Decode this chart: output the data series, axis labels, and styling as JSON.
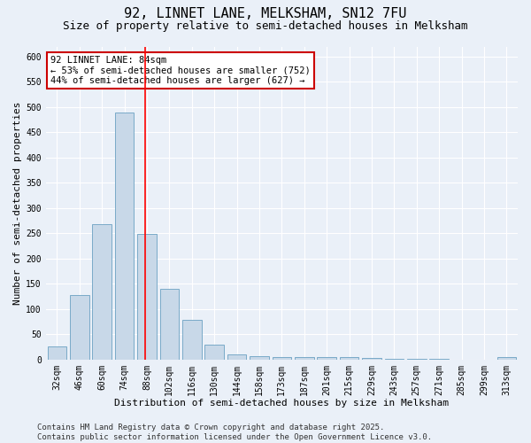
{
  "title": "92, LINNET LANE, MELKSHAM, SN12 7FU",
  "subtitle": "Size of property relative to semi-detached houses in Melksham",
  "xlabel": "Distribution of semi-detached houses by size in Melksham",
  "ylabel": "Number of semi-detached properties",
  "bar_labels": [
    "32sqm",
    "46sqm",
    "60sqm",
    "74sqm",
    "88sqm",
    "102sqm",
    "116sqm",
    "130sqm",
    "144sqm",
    "158sqm",
    "173sqm",
    "187sqm",
    "201sqm",
    "215sqm",
    "229sqm",
    "243sqm",
    "257sqm",
    "271sqm",
    "285sqm",
    "299sqm",
    "313sqm"
  ],
  "bar_values": [
    25,
    128,
    268,
    490,
    248,
    140,
    78,
    30,
    10,
    6,
    5,
    5,
    4,
    4,
    3,
    2,
    2,
    1,
    0,
    0,
    5
  ],
  "bar_color": "#c8d8e8",
  "bar_edge_color": "#7aaac8",
  "red_line_x": 3.93,
  "annotation_text": "92 LINNET LANE: 84sqm\n← 53% of semi-detached houses are smaller (752)\n44% of semi-detached houses are larger (627) →",
  "annotation_box_color": "#ffffff",
  "annotation_box_edge_color": "#cc0000",
  "ylim": [
    0,
    620
  ],
  "yticks": [
    0,
    50,
    100,
    150,
    200,
    250,
    300,
    350,
    400,
    450,
    500,
    550,
    600
  ],
  "footer_line1": "Contains HM Land Registry data © Crown copyright and database right 2025.",
  "footer_line2": "Contains public sector information licensed under the Open Government Licence v3.0.",
  "bg_color": "#eaf0f8",
  "grid_color": "#ffffff",
  "title_fontsize": 11,
  "subtitle_fontsize": 9,
  "axis_label_fontsize": 8,
  "tick_fontsize": 7,
  "annotation_fontsize": 7.5,
  "footer_fontsize": 6.5
}
